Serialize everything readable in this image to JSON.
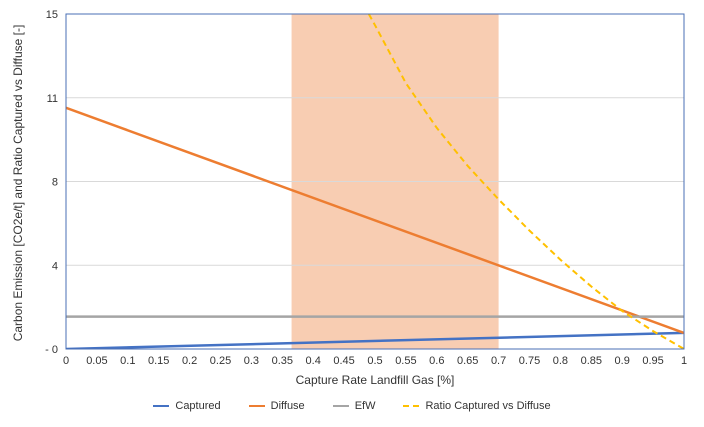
{
  "chart_data": {
    "type": "line",
    "title": "",
    "xlabel": "Capture Rate Landfill Gas [%]",
    "ylabel": "Carbon Emission [CO2e/t] and Ratio Captured vs Diffuse [-]",
    "xlim": [
      0,
      1
    ],
    "ylim": [
      0,
      15
    ],
    "x_ticks": [
      "0",
      "0.05",
      "0.1",
      "0.15",
      "0.2",
      "0.25",
      "0.3",
      "0.35",
      "0.4",
      "0.45",
      "0.5",
      "0.55",
      "0.6",
      "0.65",
      "0.7",
      "0.75",
      "0.8",
      "0.85",
      "0.9",
      "0.95",
      "1"
    ],
    "y_ticks": [
      {
        "value": 0,
        "label": "- 0"
      },
      {
        "value": 3.75,
        "label": "4"
      },
      {
        "value": 7.5,
        "label": "8"
      },
      {
        "value": 11.25,
        "label": "11"
      },
      {
        "value": 15,
        "label": "15"
      }
    ],
    "shaded_region": {
      "x_start": 0.365,
      "x_end": 0.7,
      "color": "#f8cdb2"
    },
    "series": [
      {
        "name": "Captured",
        "color": "#4472c4",
        "dash": false,
        "x": [
          0,
          1
        ],
        "y": [
          0,
          0.72
        ]
      },
      {
        "name": "Diffuse",
        "color": "#ed7d31",
        "dash": false,
        "x": [
          0,
          1
        ],
        "y": [
          10.8,
          0.72
        ]
      },
      {
        "name": "EfW",
        "color": "#a5a5a5",
        "dash": false,
        "x": [
          0,
          1
        ],
        "y": [
          1.45,
          1.45
        ]
      },
      {
        "name": "Ratio Captured vs Diffuse",
        "color": "#ffc000",
        "dash": true,
        "x": [
          0.49,
          0.5,
          0.55,
          0.6,
          0.65,
          0.7,
          0.75,
          0.8,
          0.85,
          0.9,
          0.95,
          1.0
        ],
        "y": [
          15,
          14.5,
          11.9,
          9.9,
          8.2,
          6.7,
          5.3,
          4.0,
          2.8,
          1.7,
          0.8,
          0
        ]
      }
    ],
    "legend_position": "bottom"
  }
}
